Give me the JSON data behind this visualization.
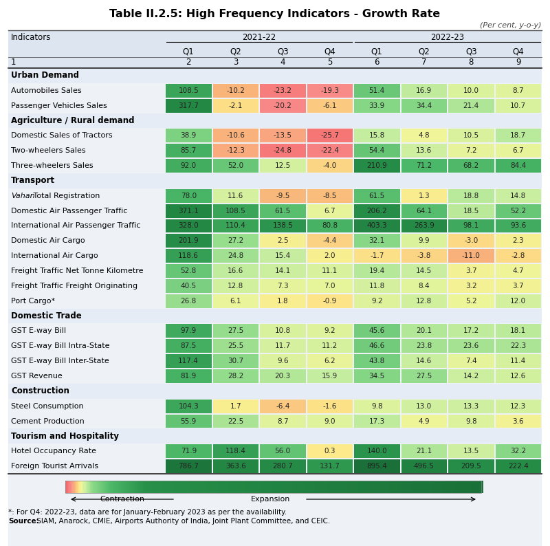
{
  "title": "Table II.2.5: High Frequency Indicators - Growth Rate",
  "subtitle": "(Per cent, y-o-y)",
  "sections": [
    {
      "name": "Urban Demand",
      "rows": [
        {
          "label": "Automobiles Sales",
          "values": [
            108.5,
            -10.2,
            -23.2,
            -19.3,
            51.4,
            16.9,
            10.0,
            8.7
          ]
        },
        {
          "label": "Passenger Vehicles Sales",
          "values": [
            317.7,
            -2.1,
            -20.2,
            -6.1,
            33.9,
            34.4,
            21.4,
            10.7
          ]
        }
      ]
    },
    {
      "name": "Agriculture / Rural demand",
      "rows": [
        {
          "label": "Domestic Sales of Tractors",
          "values": [
            38.9,
            -10.6,
            -13.5,
            -25.7,
            15.8,
            4.8,
            10.5,
            18.7
          ]
        },
        {
          "label": "Two-wheelers Sales",
          "values": [
            85.7,
            -12.3,
            -24.8,
            -22.4,
            54.4,
            13.6,
            7.2,
            6.7
          ]
        },
        {
          "label": "Three-wheelers Sales",
          "values": [
            92.0,
            52.0,
            12.5,
            -4.0,
            210.9,
            71.2,
            68.2,
            84.4
          ]
        }
      ]
    },
    {
      "name": "Transport",
      "rows": [
        {
          "label": "Vahan Total Registration",
          "values": [
            78.0,
            11.6,
            -9.5,
            -8.5,
            61.5,
            1.3,
            18.8,
            14.8
          ],
          "vahan_italic": true
        },
        {
          "label": "Domestic Air Passenger Traffic",
          "values": [
            371.1,
            108.5,
            61.5,
            6.7,
            206.2,
            64.1,
            18.5,
            52.2
          ]
        },
        {
          "label": "International Air Passenger Traffic",
          "values": [
            328.0,
            110.4,
            138.5,
            80.8,
            403.3,
            263.9,
            98.1,
            93.6
          ]
        },
        {
          "label": "Domestic Air Cargo",
          "values": [
            201.9,
            27.2,
            2.5,
            -4.4,
            32.1,
            9.9,
            -3.0,
            2.3
          ]
        },
        {
          "label": "International Air Cargo",
          "values": [
            118.6,
            24.8,
            15.4,
            2.0,
            -1.7,
            -3.8,
            -11.0,
            -2.8
          ]
        },
        {
          "label": "Freight Traffic Net Tonne Kilometre",
          "values": [
            52.8,
            16.6,
            14.1,
            11.1,
            19.4,
            14.5,
            3.7,
            4.7
          ]
        },
        {
          "label": "Freight Traffic Freight Originating",
          "values": [
            40.5,
            12.8,
            7.3,
            7.0,
            11.8,
            8.4,
            3.2,
            3.7
          ]
        },
        {
          "label": "Port Cargo*",
          "values": [
            26.8,
            6.1,
            1.8,
            -0.9,
            9.2,
            12.8,
            5.2,
            12.0
          ]
        }
      ]
    },
    {
      "name": "Domestic Trade",
      "rows": [
        {
          "label": "GST E-way Bill",
          "values": [
            97.9,
            27.5,
            10.8,
            9.2,
            45.6,
            20.1,
            17.2,
            18.1
          ]
        },
        {
          "label": "GST E-way Bill Intra-State",
          "values": [
            87.5,
            25.5,
            11.7,
            11.2,
            46.6,
            23.8,
            23.6,
            22.3
          ]
        },
        {
          "label": "GST E-way Bill Inter-State",
          "values": [
            117.4,
            30.7,
            9.6,
            6.2,
            43.8,
            14.6,
            7.4,
            11.4
          ]
        },
        {
          "label": "GST Revenue",
          "values": [
            81.9,
            28.2,
            20.3,
            15.9,
            34.5,
            27.5,
            14.2,
            12.6
          ]
        }
      ]
    },
    {
      "name": "Construction",
      "rows": [
        {
          "label": "Steel Consumption",
          "values": [
            104.3,
            1.7,
            -6.4,
            -1.6,
            9.8,
            13.0,
            13.3,
            12.3
          ]
        },
        {
          "label": "Cement Production",
          "values": [
            55.9,
            22.5,
            8.7,
            9.0,
            17.3,
            4.9,
            9.8,
            3.6
          ]
        }
      ]
    },
    {
      "name": "Tourism and Hospitality",
      "rows": [
        {
          "label": "Hotel Occupancy Rate",
          "values": [
            71.9,
            118.4,
            56.0,
            0.3,
            140.0,
            21.1,
            13.5,
            32.2
          ]
        },
        {
          "label": "Foreign Tourist Arrivals",
          "values": [
            786.7,
            363.6,
            280.7,
            131.7,
            895.4,
            496.5,
            209.5,
            222.4
          ]
        }
      ]
    }
  ],
  "footnote1": "*: For Q4: 2022-23, data are for January-February 2023 as per the availability.",
  "footnote2_bold": "Source:",
  "footnote2_rest": " SIAM, Anarock, CMIE, Airports Authority of India, Joint Plant Committee, and CEIC.",
  "table_bg": "#eef2f7",
  "header_bg": "#dde5f0",
  "section_bg": "#e5ecf5",
  "data_bg": "#eef2f7"
}
